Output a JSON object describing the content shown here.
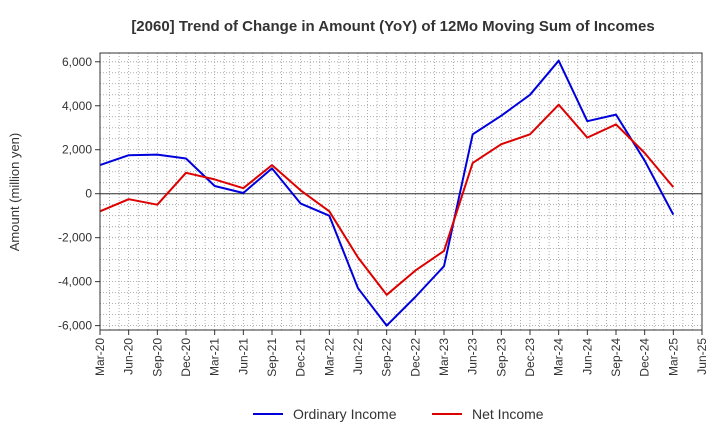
{
  "chart_data": {
    "type": "line",
    "title": "[2060]  Trend of Change in Amount (YoY) of 12Mo Moving Sum of Incomes",
    "xlabel": "",
    "ylabel": "Amount (million yen)",
    "ylim": [
      -6200,
      6400
    ],
    "y_ticks": [
      6000,
      4000,
      2000,
      0,
      -2000,
      -4000,
      -6000
    ],
    "y_tick_labels": [
      "6,000",
      "4,000",
      "2,000",
      "0",
      "-2,000",
      "-4,000",
      "-6,000"
    ],
    "grid": true,
    "legend_position": "bottom",
    "categories": [
      "Mar-20",
      "Jun-20",
      "Sep-20",
      "Dec-20",
      "Mar-21",
      "Jun-21",
      "Sep-21",
      "Dec-21",
      "Mar-22",
      "Jun-22",
      "Sep-22",
      "Dec-22",
      "Mar-23",
      "Jun-23",
      "Sep-23",
      "Dec-23",
      "Mar-24",
      "Jun-24",
      "Sep-24",
      "Dec-24",
      "Mar-25",
      "Jun-25"
    ],
    "series": [
      {
        "name": "Ordinary Income",
        "color": "#0000dd",
        "values": [
          1300,
          1750,
          1780,
          1600,
          350,
          30,
          1150,
          -450,
          -1000,
          -4300,
          -6000,
          -4700,
          -3300,
          2700,
          3550,
          4500,
          6050,
          3300,
          3600,
          1500,
          -950,
          null
        ]
      },
      {
        "name": "Net Income",
        "color": "#dd0000",
        "values": [
          -800,
          -250,
          -500,
          950,
          650,
          250,
          1300,
          150,
          -800,
          -2900,
          -4600,
          -3500,
          -2600,
          1400,
          2250,
          2700,
          4050,
          2550,
          3150,
          1850,
          300,
          null
        ]
      }
    ]
  }
}
